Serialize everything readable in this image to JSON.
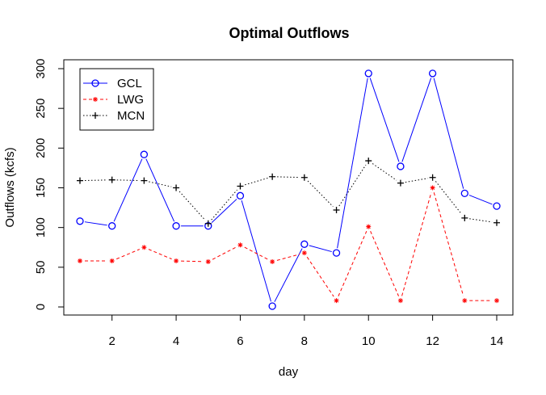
{
  "chart_data": {
    "type": "line",
    "title": "Optimal Outflows",
    "xlabel": "day",
    "ylabel": "Outflows (kcfs)",
    "x": [
      1,
      2,
      3,
      4,
      5,
      6,
      7,
      8,
      9,
      10,
      11,
      12,
      13,
      14
    ],
    "xlim": [
      1,
      14
    ],
    "ylim": [
      0,
      300
    ],
    "x_ticks": [
      "2",
      "4",
      "6",
      "8",
      "10",
      "12",
      "14"
    ],
    "y_ticks": [
      "0",
      "50",
      "100",
      "150",
      "200",
      "250",
      "300"
    ],
    "grid": false,
    "legend_position": "top-left",
    "series": [
      {
        "name": "GCL",
        "color": "#0000ff",
        "line_style": "solid",
        "marker": "circle",
        "values": [
          108,
          102,
          192,
          102,
          102,
          140,
          1,
          79,
          68,
          294,
          177,
          294,
          143,
          127
        ]
      },
      {
        "name": "LWG",
        "color": "#ff0000",
        "line_style": "dashed",
        "marker": "asterisk",
        "values": [
          58,
          58,
          75,
          58,
          57,
          78,
          57,
          68,
          8,
          101,
          8,
          150,
          8,
          8
        ]
      },
      {
        "name": "MCN",
        "color": "#000000",
        "line_style": "dotted",
        "marker": "plus",
        "values": [
          159,
          160,
          159,
          150,
          105,
          152,
          164,
          163,
          122,
          184,
          156,
          163,
          112,
          106
        ]
      }
    ]
  }
}
